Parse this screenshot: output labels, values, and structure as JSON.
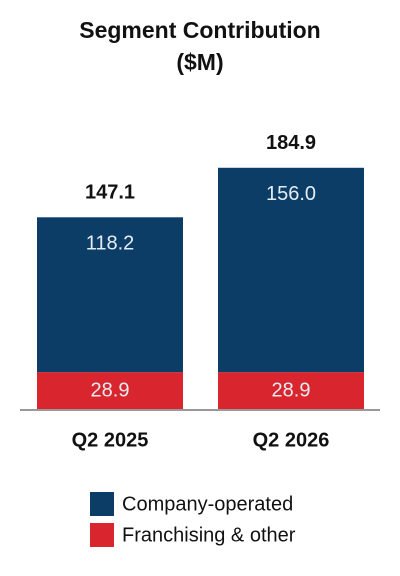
{
  "chart_data": {
    "type": "stacked-bar",
    "title": "Segment Contribution ($M)",
    "categories": [
      "Q2 2025",
      "Q2 2026"
    ],
    "series": [
      {
        "name": "Company-operated",
        "color": "#0b3d66",
        "values": [
          118.2,
          156.0
        ],
        "value_labels": [
          "118.2",
          "156.0"
        ]
      },
      {
        "name": "Franchising & other",
        "color": "#d9262e",
        "values": [
          28.9,
          28.9
        ]
      }
    ],
    "totals": [
      147.1,
      184.9
    ]
  }
}
